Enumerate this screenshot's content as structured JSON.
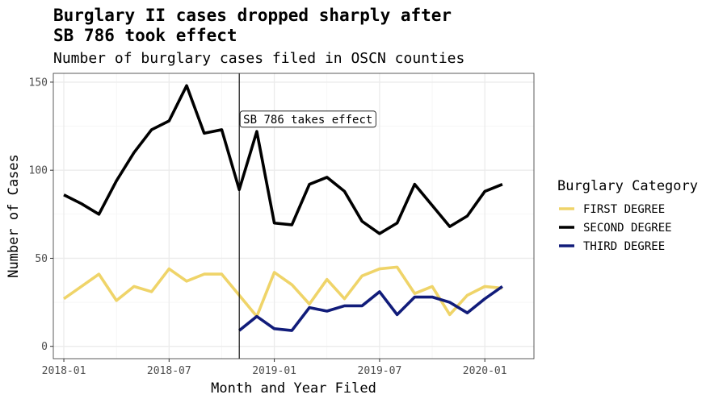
{
  "chart_data": {
    "type": "line",
    "title_line1": "Burglary II cases dropped sharply after",
    "title_line2": "SB 786 took effect",
    "subtitle": "Number of burglary cases filed in OSCN counties",
    "xlabel": "Month and Year Filed",
    "ylabel": "Number of Cases",
    "x_tick_labels": [
      "2018-01",
      "2018-07",
      "2019-01",
      "2019-07",
      "2020-01"
    ],
    "x_tick_months": [
      0,
      6,
      12,
      18,
      24
    ],
    "y_ticks": [
      0,
      50,
      100,
      150
    ],
    "xlim_months": [
      -0.6,
      26.8
    ],
    "ylim": [
      -7,
      155
    ],
    "grid": true,
    "legend_position": "right",
    "legend_title": "Burglary Category",
    "annotation": {
      "label": "SB 786 takes effect",
      "x_month": 10,
      "y": 129
    },
    "vline_month": 10,
    "series": [
      {
        "name": "FIRST DEGREE",
        "color": "#EFD469",
        "start_month": 0,
        "values": [
          27,
          34,
          41,
          26,
          34,
          31,
          44,
          37,
          41,
          41,
          29,
          17,
          42,
          35,
          24,
          38,
          27,
          40,
          44,
          45,
          30,
          34,
          18,
          29,
          34,
          33
        ]
      },
      {
        "name": "SECOND DEGREE",
        "color": "#000000",
        "start_month": 0,
        "values": [
          86,
          81,
          75,
          94,
          110,
          123,
          128,
          148,
          121,
          123,
          89,
          122,
          70,
          69,
          92,
          96,
          88,
          71,
          64,
          70,
          92,
          80,
          68,
          74,
          88,
          92
        ]
      },
      {
        "name": "THIRD DEGREE",
        "color": "#111C7A",
        "start_month": 10,
        "values": [
          9,
          17,
          10,
          9,
          22,
          20,
          23,
          23,
          31,
          18,
          28,
          28,
          25,
          19,
          27,
          34
        ]
      }
    ]
  }
}
